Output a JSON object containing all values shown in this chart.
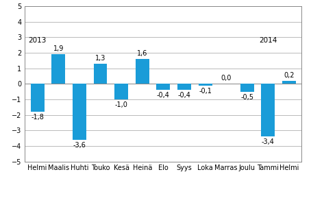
{
  "categories": [
    "Helmi",
    "Maalis",
    "Huhti",
    "Touko",
    "Kesä",
    "Heinä",
    "Elo",
    "Syys",
    "Loka",
    "Marras",
    "Joulu",
    "Tammi",
    "Helmi"
  ],
  "values": [
    -1.8,
    1.9,
    -3.6,
    1.3,
    -1.0,
    1.6,
    -0.4,
    -0.4,
    -0.1,
    0.0,
    -0.5,
    -3.4,
    0.2
  ],
  "bar_color": "#1a9cd8",
  "ylim": [
    -5,
    5
  ],
  "yticks": [
    -5,
    -4,
    -3,
    -2,
    -1,
    0,
    1,
    2,
    3,
    4,
    5
  ],
  "label_fontsize": 7.0,
  "tick_fontsize": 7.0,
  "year_fontsize": 7.5,
  "background_color": "#ffffff",
  "grid_color": "#b0b0b0",
  "year_2013_idx": 0,
  "year_2014_idx": 11,
  "year_2013": "2013",
  "year_2014": "2014"
}
